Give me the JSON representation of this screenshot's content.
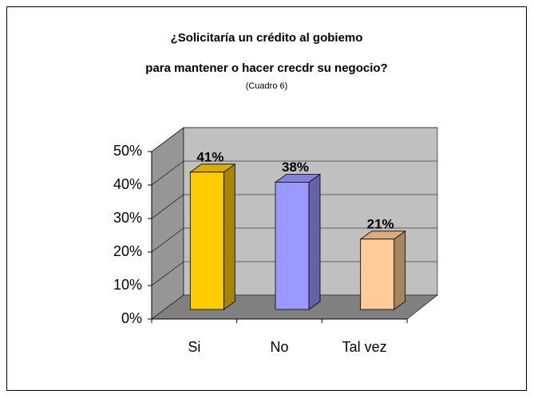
{
  "chart_data": {
    "type": "bar",
    "title": [
      "¿Solicitaría un crédito al gobiemo",
      "para mantener o hacer crecdr su negocio?"
    ],
    "subtitle": "(Cuadro 6)",
    "categories": [
      "Si",
      "No",
      "Tal vez"
    ],
    "values": [
      41,
      38,
      21
    ],
    "value_labels": [
      "41%",
      "38%",
      "21%"
    ],
    "colors": [
      "#ffcc00",
      "#9999ff",
      "#ffcc99"
    ],
    "ylim": [
      0,
      50
    ],
    "yticks": [
      {
        "value": 0,
        "label": "0%"
      },
      {
        "value": 10,
        "label": "10%"
      },
      {
        "value": 20,
        "label": "20%"
      },
      {
        "value": 30,
        "label": "30%"
      },
      {
        "value": 40,
        "label": "40%"
      },
      {
        "value": 50,
        "label": "50%"
      }
    ],
    "grid": true
  }
}
